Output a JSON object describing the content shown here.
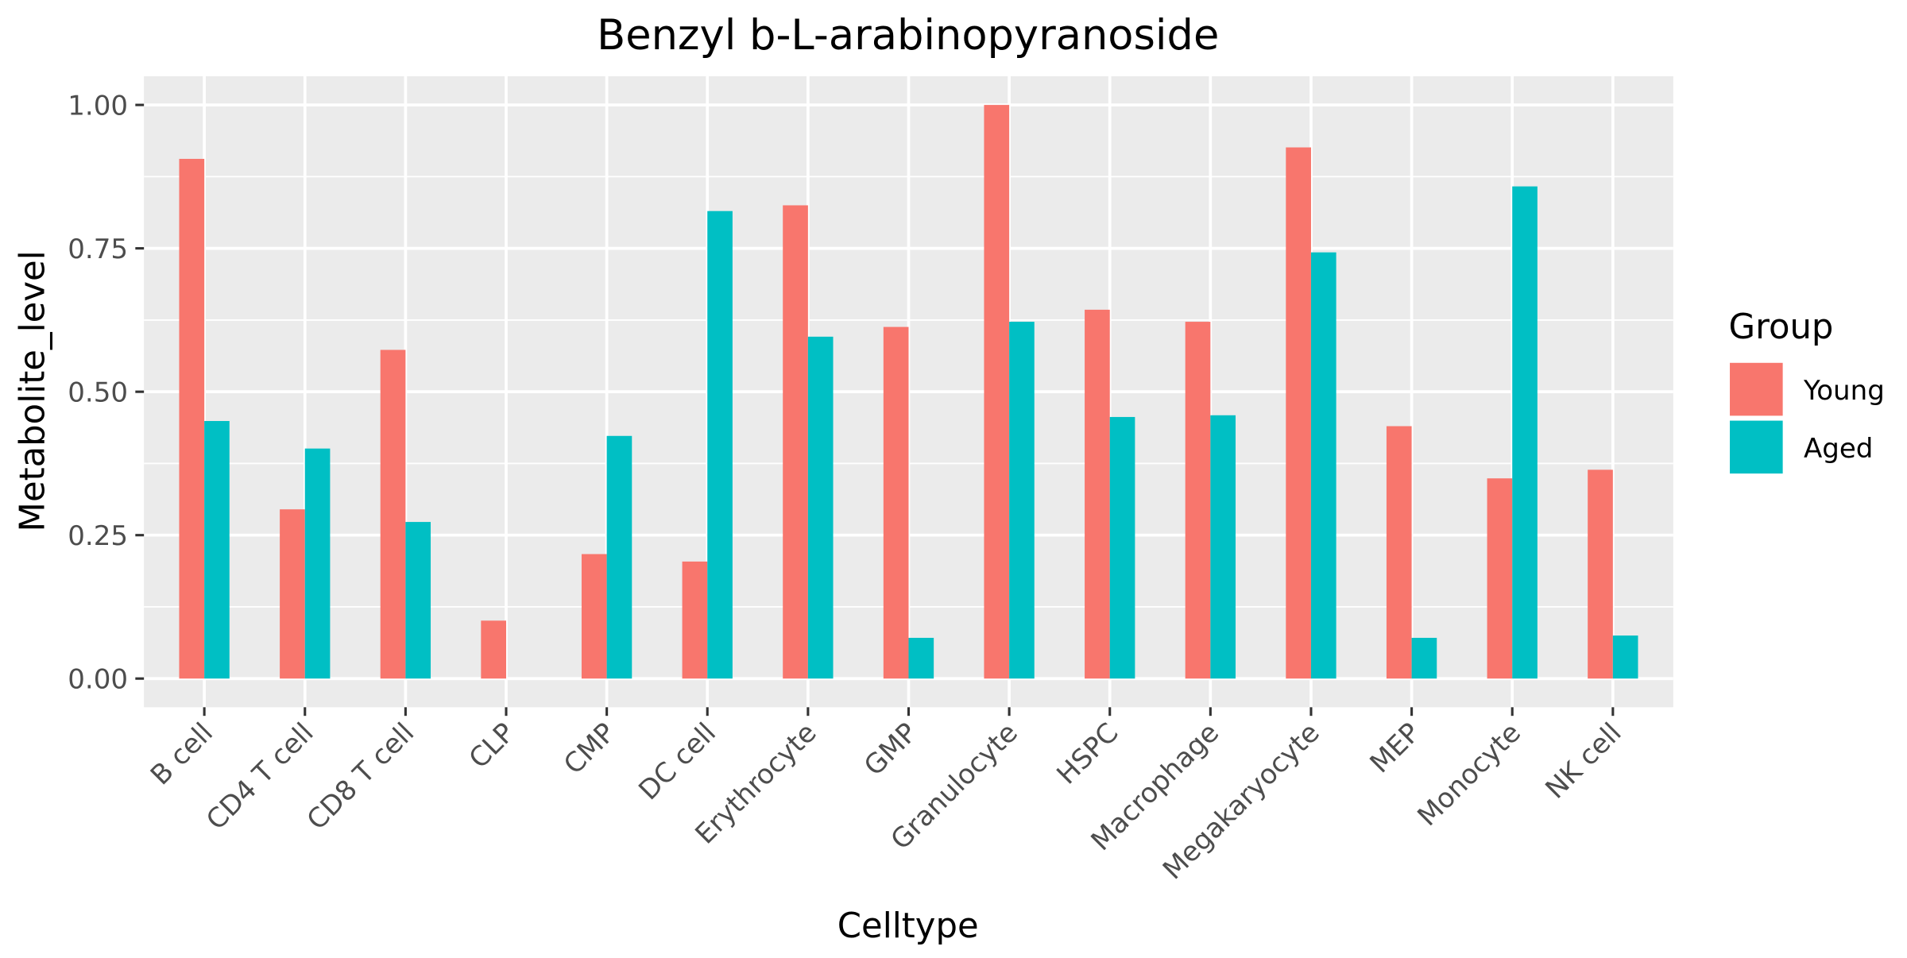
{
  "chart_data": {
    "type": "bar",
    "title": "Benzyl b-L-arabinopyranoside",
    "xlabel": "Celltype",
    "ylabel": "Metabolite_level",
    "categories": [
      "B cell",
      "CD4 T cell",
      "CD8 T cell",
      "CLP",
      "CMP",
      "DC cell",
      "Erythrocyte",
      "GMP",
      "Granulocyte",
      "HSPC",
      "Macrophage",
      "Megakaryocyte",
      "MEP",
      "Monocyte",
      "NK cell"
    ],
    "series": [
      {
        "name": "Young",
        "color": "#F8766D",
        "values": [
          0.906,
          0.295,
          0.573,
          0.101,
          0.217,
          0.204,
          0.825,
          0.613,
          1.0,
          0.643,
          0.622,
          0.926,
          0.44,
          0.349,
          0.364
        ]
      },
      {
        "name": "Aged",
        "color": "#00BFC4",
        "values": [
          0.449,
          0.401,
          0.273,
          0.0,
          0.423,
          0.815,
          0.596,
          0.071,
          0.622,
          0.456,
          0.459,
          0.743,
          0.071,
          0.858,
          0.075
        ]
      }
    ],
    "ylim": [
      -0.05,
      1.05
    ],
    "yticks": [
      {
        "value": 0.0,
        "label": "0.00"
      },
      {
        "value": 0.25,
        "label": "0.25"
      },
      {
        "value": 0.5,
        "label": "0.50"
      },
      {
        "value": 0.75,
        "label": "0.75"
      },
      {
        "value": 1.0,
        "label": "1.00"
      }
    ],
    "legend": {
      "title": "Group",
      "position": "right"
    },
    "grid": true,
    "panel_color": "#EBEBEB"
  }
}
